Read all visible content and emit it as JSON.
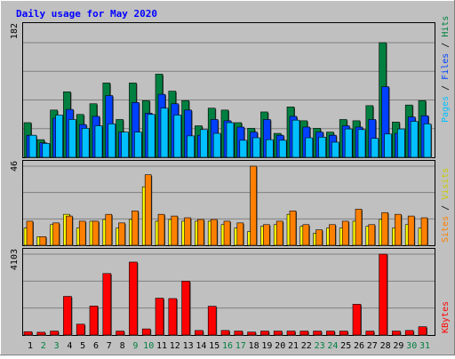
{
  "title": "Daily usage for May 2020",
  "colors": {
    "background": "#c0c0c0",
    "panel_border": "#000000",
    "title": "#0000ff",
    "hits": "#008040",
    "files": "#0040ff",
    "pages": "#00c0ff",
    "visits": "#ffff00",
    "sites": "#ff8000",
    "kbytes": "#ff0000",
    "weekday_label": "#000000",
    "weekend_label": "#008040"
  },
  "panels": {
    "hits": {
      "max_label": "182",
      "legend": [
        "Pages",
        "Files",
        "Hits"
      ]
    },
    "visits": {
      "max_label": "46",
      "legend": [
        "Sites",
        "Visits"
      ]
    },
    "kbytes": {
      "max_label": "4103",
      "legend": [
        "KBytes"
      ]
    }
  },
  "chart_data": [
    {
      "type": "bar",
      "title": "Daily usage for May 2020",
      "categories": [
        "1",
        "2",
        "3",
        "4",
        "5",
        "6",
        "7",
        "8",
        "9",
        "10",
        "11",
        "12",
        "13",
        "14",
        "15",
        "16",
        "17",
        "18",
        "19",
        "20",
        "21",
        "22",
        "23",
        "24",
        "25",
        "26",
        "27",
        "28",
        "29",
        "30",
        "31"
      ],
      "weekend_days": [
        "2",
        "3",
        "9",
        "10",
        "16",
        "17",
        "23",
        "24",
        "30",
        "31"
      ],
      "ylim": [
        0,
        182
      ],
      "series": [
        {
          "name": "Hits",
          "values": [
            55,
            28,
            75,
            104,
            68,
            85,
            118,
            60,
            118,
            90,
            132,
            105,
            90,
            50,
            78,
            75,
            55,
            46,
            72,
            38,
            80,
            58,
            46,
            40,
            60,
            58,
            82,
            182,
            56,
            83,
            90
          ]
        },
        {
          "name": "Files",
          "values": [
            35,
            23,
            62,
            76,
            52,
            65,
            98,
            40,
            87,
            70,
            100,
            85,
            75,
            35,
            60,
            58,
            48,
            40,
            60,
            35,
            65,
            48,
            40,
            35,
            50,
            48,
            60,
            112,
            38,
            64,
            66
          ]
        },
        {
          "name": "Pages",
          "values": [
            35,
            22,
            67,
            60,
            46,
            50,
            53,
            40,
            40,
            68,
            78,
            67,
            34,
            44,
            38,
            55,
            27,
            31,
            28,
            27,
            59,
            31,
            32,
            24,
            45,
            44,
            30,
            37,
            45,
            57,
            53
          ]
        }
      ]
    },
    {
      "type": "bar",
      "categories": [
        "1",
        "2",
        "3",
        "4",
        "5",
        "6",
        "7",
        "8",
        "9",
        "10",
        "11",
        "12",
        "13",
        "14",
        "15",
        "16",
        "17",
        "18",
        "19",
        "20",
        "21",
        "22",
        "23",
        "24",
        "25",
        "26",
        "27",
        "28",
        "29",
        "30",
        "31"
      ],
      "ylim": [
        0,
        46
      ],
      "series": [
        {
          "name": "Visits",
          "values": [
            10,
            5,
            12,
            18,
            10,
            14,
            15,
            10,
            15,
            34,
            14,
            15,
            14,
            14,
            14,
            12,
            10,
            8,
            11,
            12,
            18,
            11,
            7,
            10,
            10,
            14,
            11,
            15,
            10,
            12,
            10
          ]
        },
        {
          "name": "Sites",
          "values": [
            14,
            5,
            13,
            17,
            14,
            14,
            18,
            13,
            20,
            41,
            18,
            17,
            16,
            15,
            15,
            14,
            13,
            46,
            12,
            14,
            20,
            12,
            9,
            12,
            14,
            21,
            12,
            19,
            18,
            17,
            16
          ]
        }
      ]
    },
    {
      "type": "bar",
      "categories": [
        "1",
        "2",
        "3",
        "4",
        "5",
        "6",
        "7",
        "8",
        "9",
        "10",
        "11",
        "12",
        "13",
        "14",
        "15",
        "16",
        "17",
        "18",
        "19",
        "20",
        "21",
        "22",
        "23",
        "24",
        "25",
        "26",
        "27",
        "28",
        "29",
        "30",
        "31"
      ],
      "ylim": [
        0,
        4103
      ],
      "series": [
        {
          "name": "KBytes",
          "values": [
            170,
            140,
            200,
            1960,
            550,
            1470,
            3120,
            200,
            3700,
            310,
            1870,
            1850,
            2730,
            230,
            1460,
            230,
            200,
            150,
            200,
            200,
            200,
            200,
            200,
            200,
            200,
            1560,
            200,
            4103,
            200,
            230,
            420
          ]
        }
      ]
    }
  ]
}
